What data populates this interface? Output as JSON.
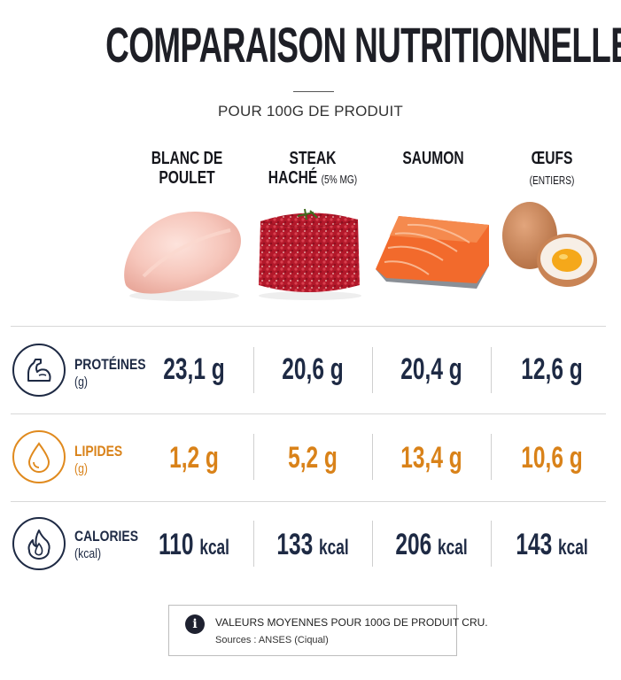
{
  "header": {
    "title": "COMPARAISON NUTRITIONNELLE",
    "subtitle": "POUR 100G DE PRODUIT"
  },
  "columns": [
    {
      "name_line1": "BLANC DE",
      "name_line2": "POULET",
      "note": ""
    },
    {
      "name_line1": "STEAK",
      "name_line2": "HACHÉ",
      "note": "(5% MG)"
    },
    {
      "name_line1": "SAUMON",
      "name_line2": "",
      "note": ""
    },
    {
      "name_line1": "ŒUFS",
      "name_line2": "",
      "note": "(ENTIERS)"
    }
  ],
  "rows": [
    {
      "label": "PROTÉINES",
      "unit": "(g)",
      "icon": "flexed-arm-icon",
      "color": "#1e2a44",
      "values": [
        "23,1 g",
        "20,6 g",
        "20,4 g",
        "12,6 g"
      ]
    },
    {
      "label": "LIPIDES",
      "unit": "(g)",
      "icon": "droplet-icon",
      "color": "#d98219",
      "values": [
        "1,2 g",
        "5,2 g",
        "13,4 g",
        "10,6 g"
      ]
    },
    {
      "label": "CALORIES",
      "unit": "(kcal)",
      "icon": "flame-icon",
      "color": "#1e2a44",
      "values": [
        "110",
        "133",
        "206",
        "143"
      ],
      "value_unit": "kcal"
    }
  ],
  "footer": {
    "note": "VALEURS MOYENNES POUR 100G DE PRODUIT CRU.",
    "source": "Sources : ANSES (Ciqual)",
    "icon": "info-icon"
  }
}
